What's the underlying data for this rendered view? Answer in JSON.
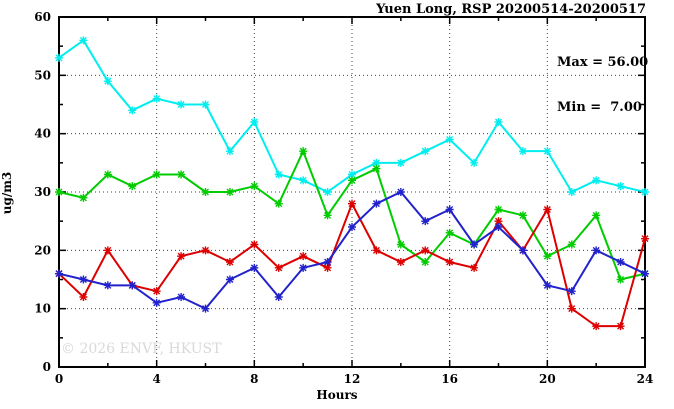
{
  "title": "Yuen Long, RSP 20200514-20200517",
  "stats": {
    "max_label": "Max = 56.00",
    "min_label": "Min =  7.00"
  },
  "watermark": "© 2026 ENVF, HKUST",
  "colors": {
    "cyan_series": "#00eeee",
    "green_series": "#00cc00",
    "red_series": "#dd0000",
    "blue_series": "#2222cc",
    "axis": "#000000",
    "grid": "#444444",
    "watermark_gray": "#d9d9d9"
  },
  "chart_data": {
    "type": "line",
    "title": "Yuen Long, RSP 20200514-20200517",
    "xlabel": "Hours",
    "ylabel": "ug/m3",
    "xlim": [
      0,
      24
    ],
    "ylim": [
      0,
      60
    ],
    "x_major_ticks": [
      0,
      4,
      8,
      12,
      16,
      20,
      24
    ],
    "x_minor_ticks": [
      2,
      6,
      10,
      14,
      18,
      22
    ],
    "y_major_ticks": [
      0,
      10,
      20,
      30,
      40,
      50,
      60
    ],
    "y_minor_ticks": [
      5,
      15,
      25,
      35,
      45,
      55
    ],
    "grid": "dotted lines at interior major ticks",
    "legend_position": "none",
    "marker": "asterisk",
    "x": [
      0,
      1,
      2,
      3,
      4,
      5,
      6,
      7,
      8,
      9,
      10,
      11,
      12,
      13,
      14,
      15,
      16,
      17,
      18,
      19,
      20,
      21,
      22,
      23,
      24
    ],
    "series": [
      {
        "name": "cyan",
        "color": "#00eeee",
        "values": [
          53,
          56,
          49,
          44,
          46,
          45,
          45,
          37,
          42,
          33,
          32,
          30,
          33,
          35,
          35,
          37,
          39,
          35,
          42,
          37,
          37,
          30,
          32,
          31,
          30
        ]
      },
      {
        "name": "green",
        "color": "#00cc00",
        "values": [
          30,
          29,
          33,
          31,
          33,
          33,
          30,
          30,
          31,
          28,
          37,
          26,
          32,
          34,
          21,
          18,
          23,
          21,
          27,
          26,
          19,
          21,
          26,
          15,
          16
        ]
      },
      {
        "name": "red",
        "color": "#dd0000",
        "values": [
          16,
          12,
          20,
          14,
          13,
          19,
          20,
          18,
          21,
          17,
          19,
          17,
          28,
          20,
          18,
          20,
          18,
          17,
          25,
          20,
          27,
          10,
          7,
          7,
          22
        ]
      },
      {
        "name": "blue",
        "color": "#2222cc",
        "values": [
          16,
          15,
          14,
          14,
          11,
          12,
          10,
          15,
          17,
          12,
          17,
          18,
          24,
          28,
          30,
          25,
          27,
          21,
          24,
          20,
          14,
          13,
          20,
          18,
          16
        ]
      }
    ],
    "annotations": {
      "max": 56.0,
      "min": 7.0
    }
  }
}
